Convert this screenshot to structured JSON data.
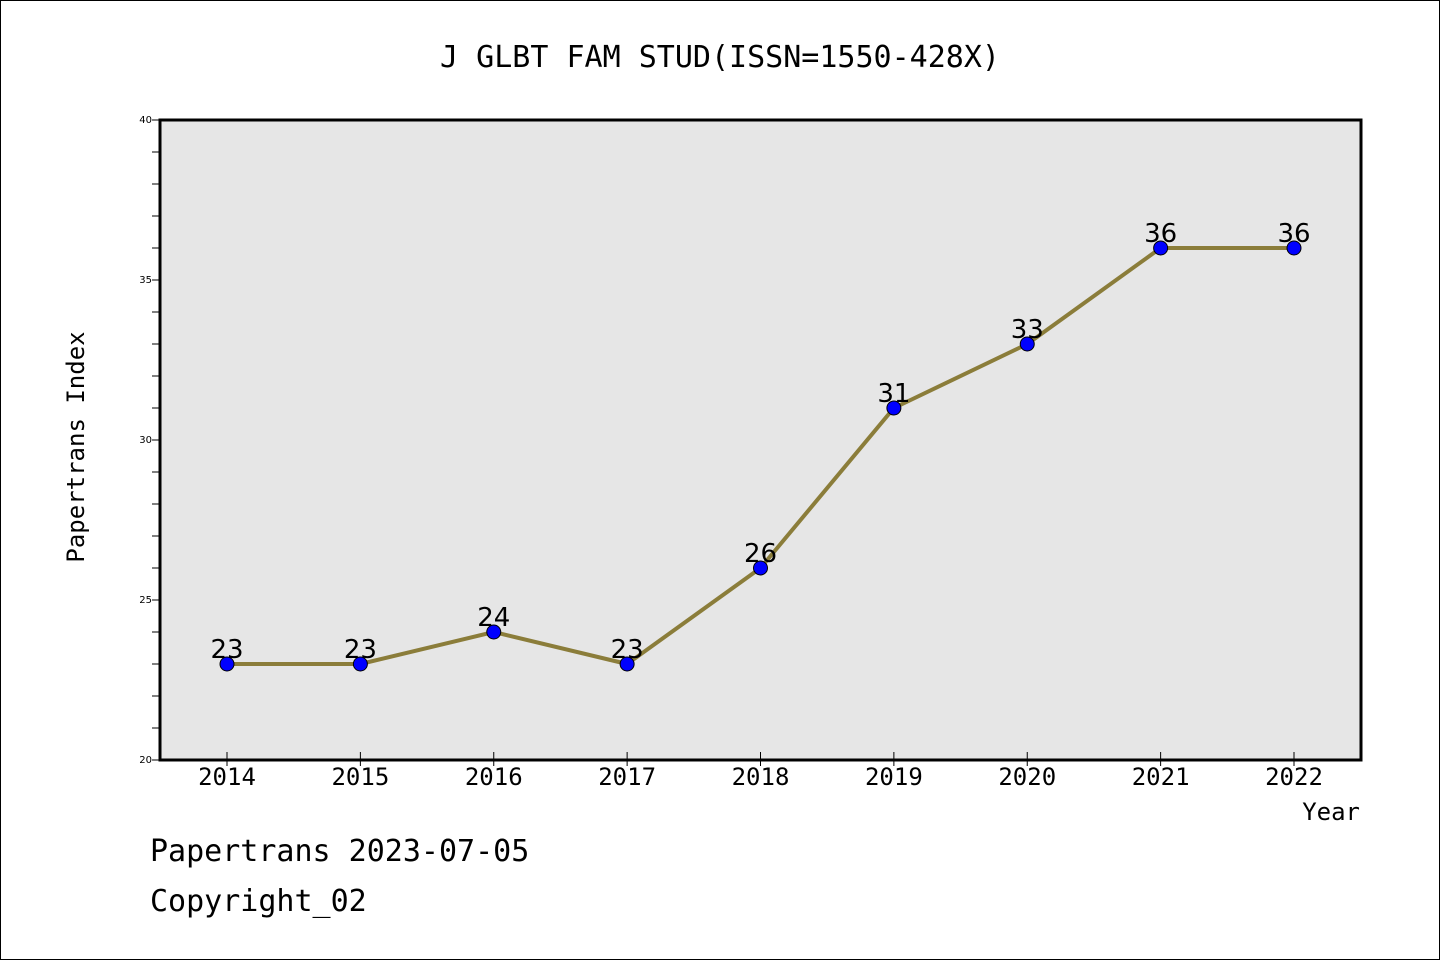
{
  "chart_data": {
    "type": "line",
    "title": "J GLBT FAM STUD(ISSN=1550-428X)",
    "xlabel": "Year",
    "ylabel": "Papertrans Index",
    "x": [
      "2014",
      "2015",
      "2016",
      "2017",
      "2018",
      "2019",
      "2020",
      "2021",
      "2022"
    ],
    "values": [
      23,
      23,
      24,
      23,
      26,
      31,
      33,
      36,
      36
    ],
    "data_labels": [
      "23",
      "23",
      "24",
      "23",
      "26",
      "31",
      "33",
      "36",
      "36"
    ],
    "ylim": [
      20,
      40
    ],
    "y_ticks": [
      "20",
      "25",
      "30",
      "35",
      "40"
    ],
    "grid": false,
    "colors": {
      "line": "#8b7d3a",
      "marker": "#0000ff",
      "plot_background": "#e6e6e6"
    }
  },
  "footer": {
    "date_text": "Papertrans 2023-07-05",
    "copyright_text": "Copyright_02"
  }
}
